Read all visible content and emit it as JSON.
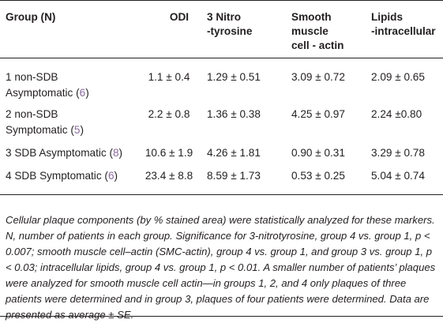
{
  "table": {
    "headers": {
      "group": "Group (N)",
      "odi": "ODI",
      "nitro_line1": "3 Nitro",
      "nitro_line2": "-tyrosine",
      "smc_line1": "Smooth",
      "smc_line2": "muscle",
      "smc_line3": "cell - actin",
      "lipids_line1": "Lipids",
      "lipids_line2": "-intracellular"
    },
    "rows": [
      {
        "group_line1": "1 non-SDB",
        "group_line2": "Asymptomatic (",
        "n": "6",
        "close": ")",
        "odi": "1.1 ± 0.4",
        "nitro": "1.29 ± 0.51",
        "smc": "3.09 ± 0.72",
        "lipids": "2.09 ± 0.65"
      },
      {
        "group_line1": "2 non-SDB",
        "group_line2": "Symptomatic (",
        "n": "5",
        "close": ")",
        "odi": "2.2 ± 0.8",
        "nitro": "1.36 ± 0.38",
        "smc": "4.25 ± 0.97",
        "lipids": "2.24 ±0.80"
      },
      {
        "group_line1": "3 SDB Asymptomatic (",
        "n": "8",
        "close": ")",
        "odi": "10.6 ± 1.9",
        "nitro": "4.26 ± 1.81",
        "smc": "0.90 ± 0.31",
        "lipids": "3.29 ± 0.78"
      },
      {
        "group_line1": "4 SDB Symptomatic (",
        "n": "6",
        "close": ")",
        "odi": "23.4 ± 8.8",
        "nitro": "8.59 ± 1.73",
        "smc": "0.53 ± 0.25",
        "lipids": "5.04 ± 0.74"
      }
    ]
  },
  "footnote": "Cellular plaque components (by % stained area) were statistically analyzed for these markers. N, number of patients in each group. Significance for 3-nitrotyrosine, group 4 vs. group 1, p < 0.007; smooth muscle cell–actin (SMC-actin), group 4 vs. group 1, and group 3 vs. group 1, p < 0.03; intracellular lipids, group 4 vs. group 1, p < 0.01. A smaller number of patients’ plaques were analyzed for smooth muscle cell actin—in groups 1, 2, and 4 only plaques of three patients were determined and in group 3, plaques of four patients were determined. Data are presented as average ± SE."
}
